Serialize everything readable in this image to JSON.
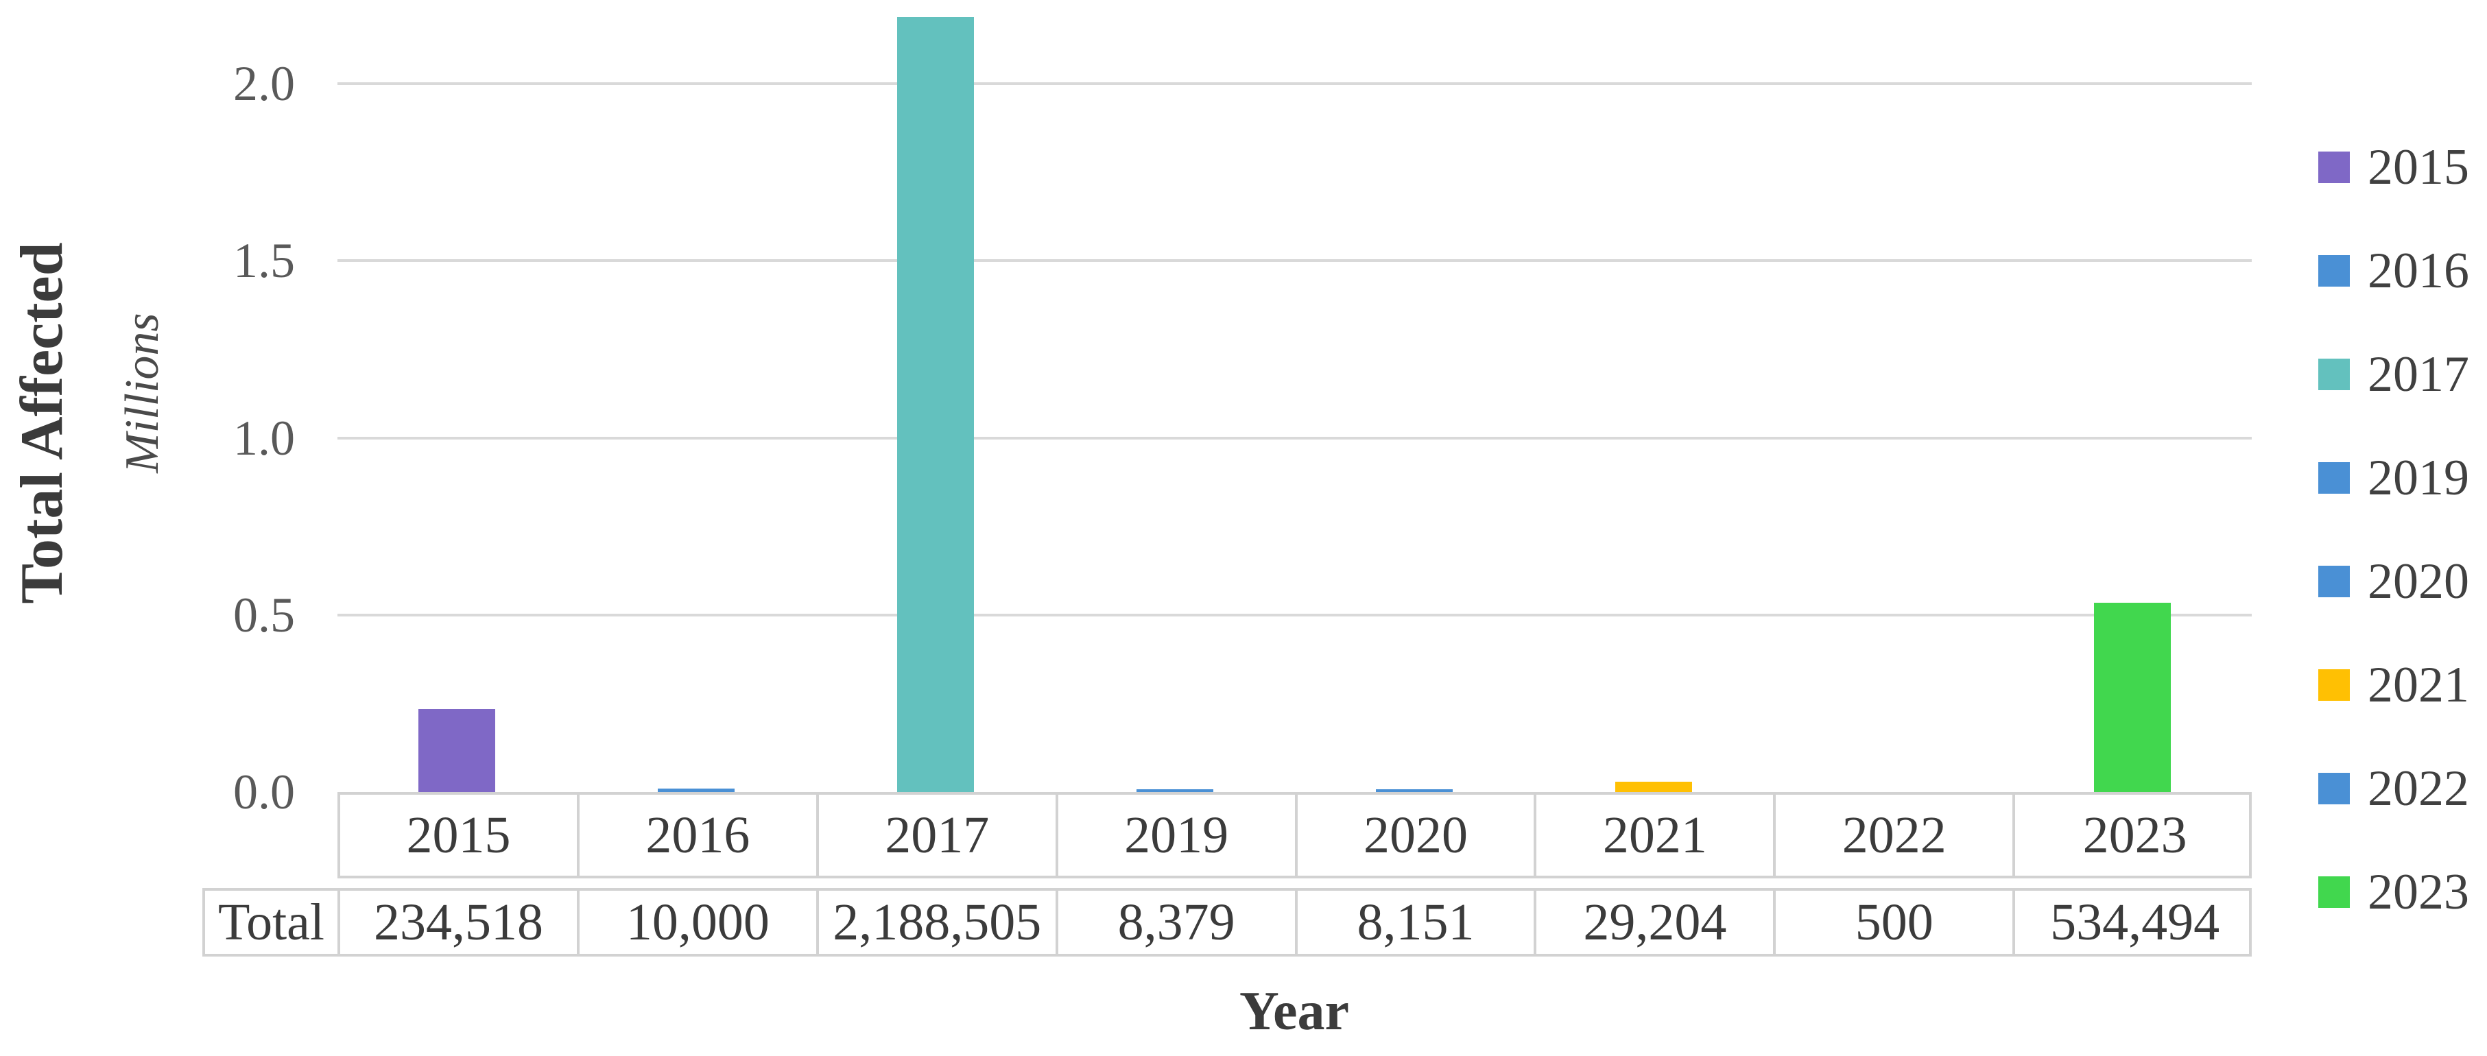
{
  "chart_data": {
    "type": "bar",
    "title": "",
    "xlabel": "Year",
    "ylabel": "Total Affected",
    "y_unit_label": "Millions",
    "categories": [
      "2015",
      "2016",
      "2017",
      "2019",
      "2020",
      "2021",
      "2022",
      "2023"
    ],
    "values": [
      234518,
      10000,
      2188505,
      8379,
      8151,
      29204,
      500,
      534494
    ],
    "series": [
      {
        "label": "2015",
        "value": 234518,
        "value_label": "234,518",
        "color": "#7f68c6"
      },
      {
        "label": "2016",
        "value": 10000,
        "value_label": "10,000",
        "color": "#4a90d5"
      },
      {
        "label": "2017",
        "value": 2188505,
        "value_label": "2,188,505",
        "color": "#63c1be"
      },
      {
        "label": "2019",
        "value": 8379,
        "value_label": "8,379",
        "color": "#4a90d5"
      },
      {
        "label": "2020",
        "value": 8151,
        "value_label": "8,151",
        "color": "#4a90d5"
      },
      {
        "label": "2021",
        "value": 29204,
        "value_label": "29,204",
        "color": "#ffc003"
      },
      {
        "label": "2022",
        "value": 500,
        "value_label": "500",
        "color": "#4a90d5"
      },
      {
        "label": "2023",
        "value": 534494,
        "value_label": "534,494",
        "color": "#41d74e"
      }
    ],
    "y_ticks": [
      {
        "value": 0,
        "label": "0.0"
      },
      {
        "value": 500000,
        "label": "0.5"
      },
      {
        "value": 1000000,
        "label": "1.0"
      },
      {
        "value": 1500000,
        "label": "1.5"
      },
      {
        "value": 2000000,
        "label": "2.0"
      }
    ],
    "y_max": 2188505,
    "ylim": [
      0,
      2188505
    ],
    "grid": true,
    "legend_position": "right",
    "legend": [
      {
        "label": "2015",
        "color": "#7f68c6"
      },
      {
        "label": "2016",
        "color": "#4a90d5"
      },
      {
        "label": "2017",
        "color": "#63c1be"
      },
      {
        "label": "2019",
        "color": "#4a90d5"
      },
      {
        "label": "2020",
        "color": "#4a90d5"
      },
      {
        "label": "2021",
        "color": "#ffc003"
      },
      {
        "label": "2022",
        "color": "#4a90d5"
      },
      {
        "label": "2023",
        "color": "#41d74e"
      }
    ],
    "table": {
      "row_header": "Total",
      "columns": [
        "2015",
        "2016",
        "2017",
        "2019",
        "2020",
        "2021",
        "2022",
        "2023"
      ],
      "row_values": [
        "234,518",
        "10,000",
        "2,188,505",
        "8,379",
        "8,151",
        "29,204",
        "500",
        "534,494"
      ]
    }
  },
  "colors": {
    "background": "#ffffff",
    "gridline": "#d9d9d9",
    "table_border": "#d2d2d2",
    "text": "#3b3b3b",
    "tick_text": "#595959"
  }
}
